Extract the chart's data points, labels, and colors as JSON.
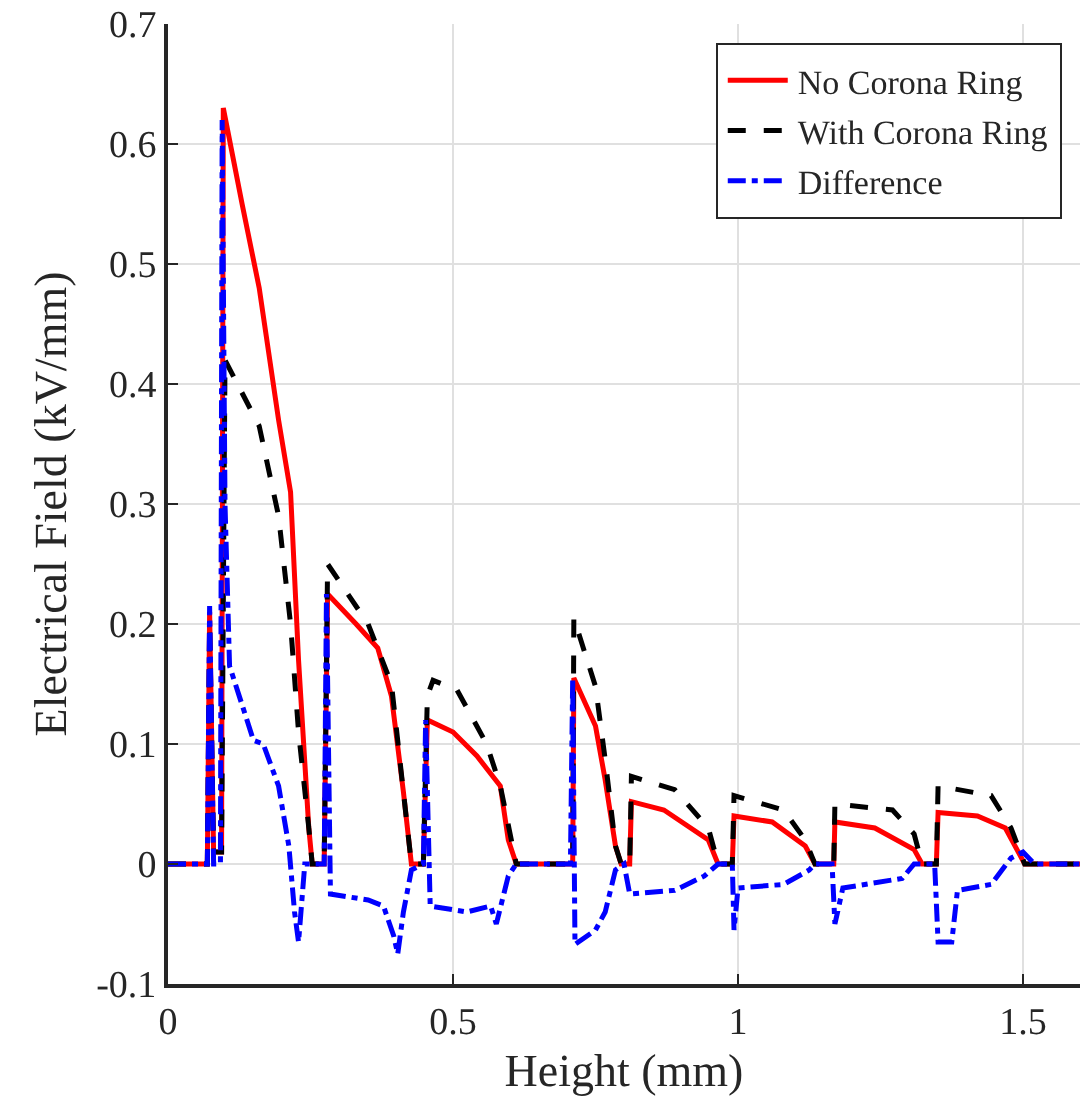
{
  "chart_data": {
    "type": "line",
    "xlabel": "Height (mm)",
    "ylabel": "Electrical Field (kV/mm)",
    "xlim": [
      0,
      1.6
    ],
    "xticks": [
      0,
      0.5,
      1,
      1.5
    ],
    "ylim": [
      -0.1,
      0.7
    ],
    "yticks": [
      -0.1,
      0,
      0.1,
      0.2,
      0.3,
      0.4,
      0.5,
      0.6,
      0.7
    ],
    "grid": true,
    "legend": "top right",
    "marker": "none",
    "series": [
      {
        "name": "No Corona Ring",
        "color": "#ff0000",
        "line_style": "solid",
        "x": [
          0,
          0.069,
          0.073,
          0.08,
          0.094,
          0.097,
          0.13,
          0.16,
          0.194,
          0.215,
          0.229,
          0.247,
          0.253,
          0.274,
          0.28,
          0.33,
          0.368,
          0.392,
          0.413,
          0.427,
          0.448,
          0.455,
          0.5,
          0.542,
          0.583,
          0.597,
          0.611,
          0.71,
          0.712,
          0.75,
          0.767,
          0.785,
          0.795,
          0.81,
          0.813,
          0.87,
          0.948,
          0.965,
          0.99,
          0.993,
          1.06,
          1.118,
          1.135,
          1.168,
          1.17,
          1.24,
          1.309,
          1.323,
          1.348,
          1.351,
          1.42,
          1.469,
          1.503,
          1.6
        ],
        "values": [
          0,
          0,
          0.21,
          0.01,
          0.01,
          0.63,
          0.55,
          0.48,
          0.37,
          0.31,
          0.17,
          0.03,
          0,
          0,
          0.225,
          0.2,
          0.18,
          0.14,
          0.06,
          0,
          0,
          0.12,
          0.11,
          0.09,
          0.065,
          0.02,
          0,
          0,
          0.155,
          0.115,
          0.07,
          0.015,
          0,
          0,
          0.052,
          0.045,
          0.02,
          0,
          0,
          0.04,
          0.035,
          0.015,
          0,
          0,
          0.035,
          0.03,
          0.012,
          0,
          0,
          0.043,
          0.04,
          0.03,
          0,
          0
        ]
      },
      {
        "name": "With Corona Ring",
        "color": "#000000",
        "line_style": "dashed",
        "x": [
          0,
          0.069,
          0.073,
          0.08,
          0.094,
          0.1,
          0.16,
          0.194,
          0.215,
          0.229,
          0.247,
          0.253,
          0.274,
          0.28,
          0.351,
          0.392,
          0.413,
          0.427,
          0.448,
          0.455,
          0.465,
          0.507,
          0.559,
          0.583,
          0.611,
          0.71,
          0.712,
          0.75,
          0.767,
          0.785,
          0.795,
          0.81,
          0.813,
          0.889,
          0.948,
          0.965,
          0.99,
          0.993,
          1.08,
          1.118,
          1.135,
          1.168,
          1.17,
          1.271,
          1.309,
          1.323,
          1.348,
          1.351,
          1.444,
          1.479,
          1.503,
          1.6
        ],
        "values": [
          0,
          0,
          0.2,
          0.01,
          0.01,
          0.42,
          0.365,
          0.29,
          0.2,
          0.11,
          0.03,
          0,
          0,
          0.25,
          0.2,
          0.15,
          0.06,
          0,
          0,
          0.14,
          0.153,
          0.145,
          0.1,
          0.065,
          0,
          0,
          0.205,
          0.148,
          0.087,
          0.015,
          0,
          0,
          0.073,
          0.062,
          0.03,
          0,
          0,
          0.057,
          0.045,
          0.02,
          0,
          0,
          0.05,
          0.045,
          0.025,
          0,
          0,
          0.065,
          0.057,
          0.03,
          0,
          0
        ]
      },
      {
        "name": "Difference",
        "color": "#0000ff",
        "line_style": "dashdot",
        "x": [
          0,
          0.069,
          0.073,
          0.08,
          0.092,
          0.095,
          0.1,
          0.108,
          0.15,
          0.167,
          0.194,
          0.212,
          0.222,
          0.229,
          0.24,
          0.274,
          0.278,
          0.285,
          0.351,
          0.378,
          0.396,
          0.403,
          0.413,
          0.427,
          0.448,
          0.452,
          0.46,
          0.524,
          0.566,
          0.576,
          0.597,
          0.611,
          0.706,
          0.71,
          0.714,
          0.75,
          0.767,
          0.785,
          0.8,
          0.81,
          0.889,
          0.941,
          0.965,
          0.99,
          0.993,
          1.0,
          1.08,
          1.125,
          1.135,
          1.165,
          1.17,
          1.184,
          1.288,
          1.309,
          1.345,
          1.351,
          1.375,
          1.385,
          1.444,
          1.479,
          1.5,
          1.52,
          1.6
        ],
        "values": [
          0,
          0,
          0.215,
          0,
          0,
          0.62,
          0.3,
          0.165,
          0.103,
          0.1,
          0.065,
          0.015,
          -0.04,
          -0.065,
          0,
          0,
          0.225,
          -0.025,
          -0.03,
          -0.035,
          -0.06,
          -0.075,
          -0.04,
          -0.005,
          0,
          0.12,
          -0.035,
          -0.04,
          -0.035,
          -0.05,
          -0.01,
          0,
          0,
          0.155,
          -0.067,
          -0.055,
          -0.04,
          -0.005,
          0,
          -0.025,
          -0.022,
          -0.01,
          0,
          0,
          -0.055,
          -0.02,
          -0.017,
          -0.005,
          0,
          0,
          -0.05,
          -0.02,
          -0.012,
          0,
          0,
          -0.065,
          -0.065,
          -0.022,
          -0.017,
          0.005,
          0.01,
          0,
          0
        ]
      }
    ]
  }
}
